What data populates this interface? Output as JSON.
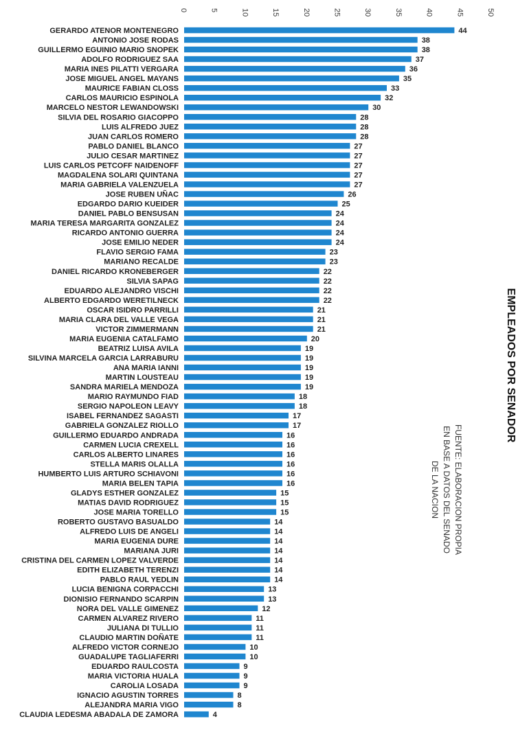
{
  "chart_data": {
    "type": "bar",
    "orientation": "horizontal",
    "title": "EMPLEADOS POR SENADOR",
    "source_lines": [
      "FUENTE: ELABORACION PROPIA",
      "EN BASE A DATOS DEL SENADO",
      "DE LA NACION"
    ],
    "xlim": [
      0,
      50
    ],
    "ticks": [
      "0",
      "5",
      "10",
      "15",
      "20",
      "25",
      "30",
      "35",
      "40",
      "45",
      "50"
    ],
    "grid": false,
    "colors": {
      "bar": "#1f86cf"
    },
    "categories": [
      "GERARDO ATENOR MONTENEGRO",
      "ANTONIO JOSE RODAS",
      "GUILLERMO EGUINIO MARIO SNOPEK",
      "ADOLFO RODRIGUEZ SAA",
      "MARIA INES PILATTI VERGARA",
      "JOSE MIGUEL ANGEL MAYANS",
      "MAURICE FABIAN CLOSS",
      "CARLOS MAURICIO ESPINOLA",
      "MARCELO NESTOR LEWANDOWSKI",
      "SILVIA DEL ROSARIO GIACOPPO",
      "LUIS ALFREDO JUEZ",
      "JUAN CARLOS ROMERO",
      "PABLO DANIEL BLANCO",
      "JULIO CESAR MARTINEZ",
      "LUIS CARLOS PETCOFF NAIDENOFF",
      "MAGDALENA SOLARI QUINTANA",
      "MARIA GABRIELA VALENZUELA",
      "JOSE RUBEN UÑAC",
      "EDGARDO DARIO KUEIDER",
      "DANIEL PABLO BENSUSAN",
      "MARIA TERESA MARGARITA GONZALEZ",
      "RICARDO ANTONIO GUERRA",
      "JOSE EMILIO NEDER",
      "FLAVIO SERGIO FAMA",
      "MARIANO RECALDE",
      "DANIEL RICARDO KRONEBERGER",
      "SILVIA SAPAG",
      "EDUARDO ALEJANDRO VISCHI",
      "ALBERTO EDGARDO WERETILNECK",
      "OSCAR ISIDRO PARRILLI",
      "MARIA CLARA DEL VALLE VEGA",
      "VICTOR ZIMMERMANN",
      "MARIA EUGENIA CATALFAMO",
      "BEATRIZ LUISA AVILA",
      "SILVINA MARCELA GARCIA LARRABURU",
      "ANA MARIA IANNI",
      "MARTIN LOUSTEAU",
      "SANDRA MARIELA MENDOZA",
      "MARIO RAYMUNDO FIAD",
      "SERGIO NAPOLEON LEAVY",
      "ISABEL FERNANDEZ SAGASTI",
      "GABRIELA GONZALEZ RIOLLO",
      "GUILLERMO EDUARDO ANDRADA",
      "CARMEN LUCIA CREXELL",
      "CARLOS ALBERTO LINARES",
      "STELLA MARIS OLALLA",
      "HUMBERTO LUIS ARTURO SCHIAVONI",
      "MARIA BELEN TAPIA",
      "GLADYS ESTHER GONZALEZ",
      "MATIAS DAVID RODRIGUEZ",
      "JOSE MARIA TORELLO",
      "ROBERTO GUSTAVO BASUALDO",
      "ALFREDO LUIS DE ANGELI",
      "MARIA EUGENIA DURE",
      "MARIANA JURI",
      "CRISTINA DEL CARMEN LOPEZ VALVERDE",
      "EDITH ELIZABETH TERENZI",
      "PABLO RAUL YEDLIN",
      "LUCIA BENIGNA CORPACCHI",
      "DIONISIO FERNANDO SCARPIN",
      "NORA DEL VALLE GIMENEZ",
      "CARMEN ALVAREZ RIVERO",
      "JULIANA DI TULLIO",
      "CLAUDIO MARTIN DOÑATE",
      "ALFREDO VICTOR CORNEJO",
      "GUADALUPE TAGLIAFERRI",
      "EDUARDO RAULCOSTA",
      "MARIA VICTORIA HUALA",
      "CAROLIA LOSADA",
      "IGNACIO AGUSTIN TORRES",
      "ALEJANDRA MARIA VIGO",
      "CLAUDIA LEDESMA ABADALA DE ZAMORA"
    ],
    "values": [
      44,
      38,
      38,
      37,
      36,
      35,
      33,
      32,
      30,
      28,
      28,
      28,
      27,
      27,
      27,
      27,
      27,
      26,
      25,
      24,
      24,
      24,
      24,
      23,
      23,
      22,
      22,
      22,
      22,
      21,
      21,
      21,
      20,
      19,
      19,
      19,
      19,
      19,
      18,
      18,
      17,
      17,
      16,
      16,
      16,
      16,
      16,
      16,
      15,
      15,
      15,
      14,
      14,
      14,
      14,
      14,
      14,
      14,
      13,
      13,
      12,
      11,
      11,
      11,
      10,
      10,
      9,
      9,
      9,
      8,
      8,
      4
    ]
  }
}
